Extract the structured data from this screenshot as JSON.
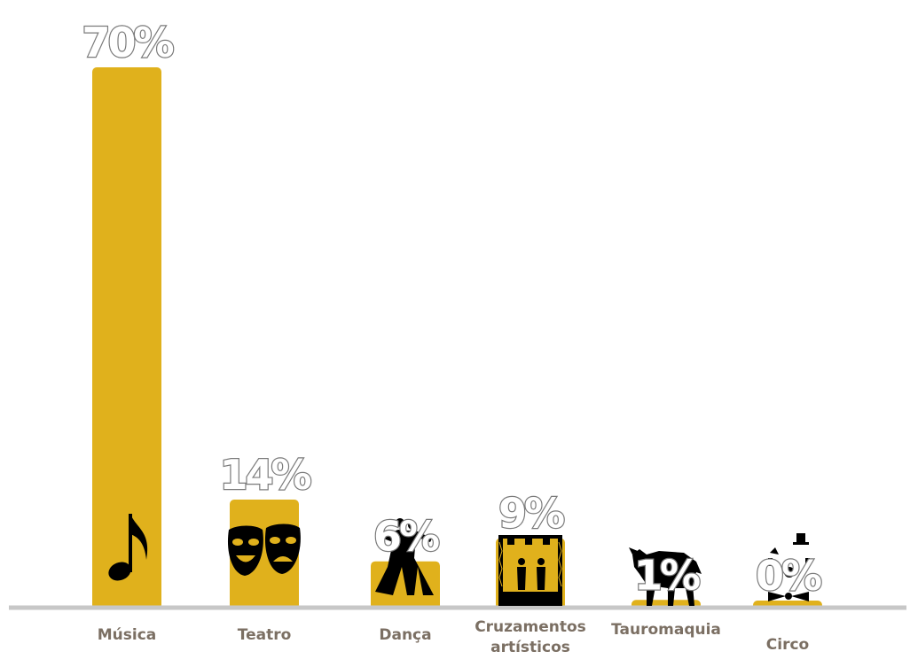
{
  "chart_data": {
    "type": "bar",
    "categories": [
      "Música",
      "Teatro",
      "Dança",
      "Cruzamentos artísticos",
      "Tauromaquia",
      "Circo"
    ],
    "category_label_lines": [
      [
        "Música"
      ],
      [
        "Teatro"
      ],
      [
        "Dança"
      ],
      [
        "Cruzamentos",
        "artísticos"
      ],
      [
        "Tauromaquia"
      ],
      [
        "Circo"
      ]
    ],
    "values": [
      70,
      14,
      6,
      9,
      1,
      0
    ],
    "value_labels": [
      "70%",
      "14%",
      "6%",
      "9%",
      "1%",
      "0%"
    ],
    "icons": [
      "music-note-icon",
      "theater-masks-icon",
      "ballroom-dancers-icon",
      "stage-performers-icon",
      "bull-icon",
      "clown-icon"
    ],
    "title": "",
    "xlabel": "",
    "ylabel": "",
    "ylim": [
      0,
      70
    ],
    "grid": false,
    "legend": "none",
    "colors": {
      "bar": "#E0B11C",
      "baseline": "#C7C7C7",
      "label_text": "#7B6F63",
      "value_outline": "#7A7A7A",
      "icon": "#000000"
    }
  }
}
